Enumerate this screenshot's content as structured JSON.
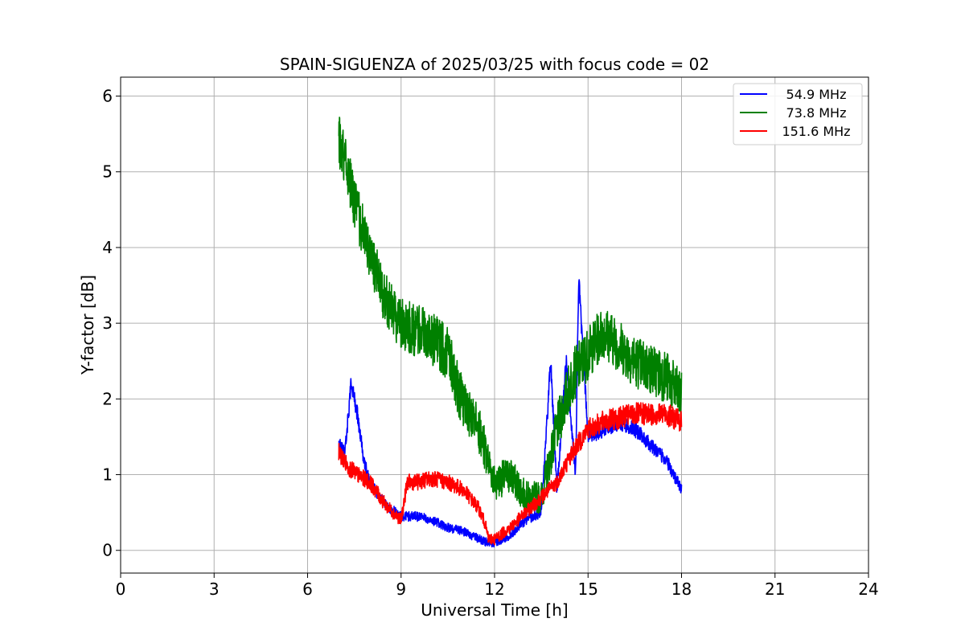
{
  "chart_data": {
    "type": "line",
    "title": "SPAIN-SIGUENZA of 2025/03/25 with focus code = 02",
    "xlabel": "Universal Time [h]",
    "ylabel": "Y-factor [dB]",
    "xlim": [
      0,
      24
    ],
    "ylim": [
      -0.3,
      6.25
    ],
    "xticks": [
      0,
      3,
      6,
      9,
      12,
      15,
      18,
      21,
      24
    ],
    "yticks": [
      0,
      1,
      2,
      3,
      4,
      5,
      6
    ],
    "grid": true,
    "legend_position": "top-right",
    "series": [
      {
        "name": "54.9 MHz",
        "color": "#0000ff",
        "noise": 0.12,
        "x": [
          7.0,
          7.2,
          7.4,
          7.6,
          7.8,
          8.0,
          8.5,
          9.0,
          9.5,
          10.0,
          10.5,
          11.0,
          11.5,
          11.8,
          12.0,
          12.5,
          13.0,
          13.5,
          13.8,
          14.0,
          14.3,
          14.6,
          14.7,
          15.0,
          15.5,
          16.0,
          16.5,
          17.0,
          17.5,
          18.0
        ],
        "y": [
          1.4,
          1.3,
          2.2,
          1.8,
          1.2,
          0.9,
          0.6,
          0.45,
          0.45,
          0.4,
          0.3,
          0.25,
          0.15,
          0.1,
          0.1,
          0.2,
          0.4,
          0.5,
          2.5,
          0.8,
          2.5,
          1.0,
          3.6,
          1.5,
          1.6,
          1.7,
          1.6,
          1.4,
          1.2,
          0.8
        ]
      },
      {
        "name": "73.8 MHz",
        "color": "#008000",
        "noise": 0.35,
        "x": [
          7.0,
          7.2,
          7.5,
          8.0,
          8.5,
          9.0,
          9.5,
          10.0,
          10.5,
          11.0,
          11.5,
          12.0,
          12.5,
          13.0,
          13.5,
          14.0,
          14.5,
          15.0,
          15.5,
          16.0,
          16.5,
          17.0,
          17.5,
          18.0
        ],
        "y": [
          5.4,
          5.2,
          4.6,
          3.9,
          3.3,
          3.0,
          2.9,
          2.8,
          2.6,
          1.9,
          1.6,
          0.9,
          1.0,
          0.7,
          0.7,
          1.6,
          2.3,
          2.6,
          2.9,
          2.7,
          2.5,
          2.4,
          2.3,
          2.0
        ]
      },
      {
        "name": "151.6 MHz",
        "color": "#ff0000",
        "noise": 0.16,
        "x": [
          7.0,
          7.3,
          7.6,
          8.0,
          8.5,
          9.0,
          9.2,
          9.5,
          10.0,
          10.5,
          11.0,
          11.5,
          11.7,
          11.8,
          12.0,
          12.5,
          13.0,
          13.5,
          14.0,
          14.5,
          15.0,
          15.5,
          16.0,
          16.5,
          17.0,
          17.5,
          18.0
        ],
        "y": [
          1.3,
          1.1,
          1.0,
          0.9,
          0.6,
          0.4,
          0.9,
          0.9,
          0.95,
          0.9,
          0.8,
          0.55,
          0.35,
          0.15,
          0.15,
          0.3,
          0.5,
          0.7,
          0.9,
          1.3,
          1.6,
          1.7,
          1.75,
          1.8,
          1.8,
          1.8,
          1.7
        ]
      }
    ]
  }
}
